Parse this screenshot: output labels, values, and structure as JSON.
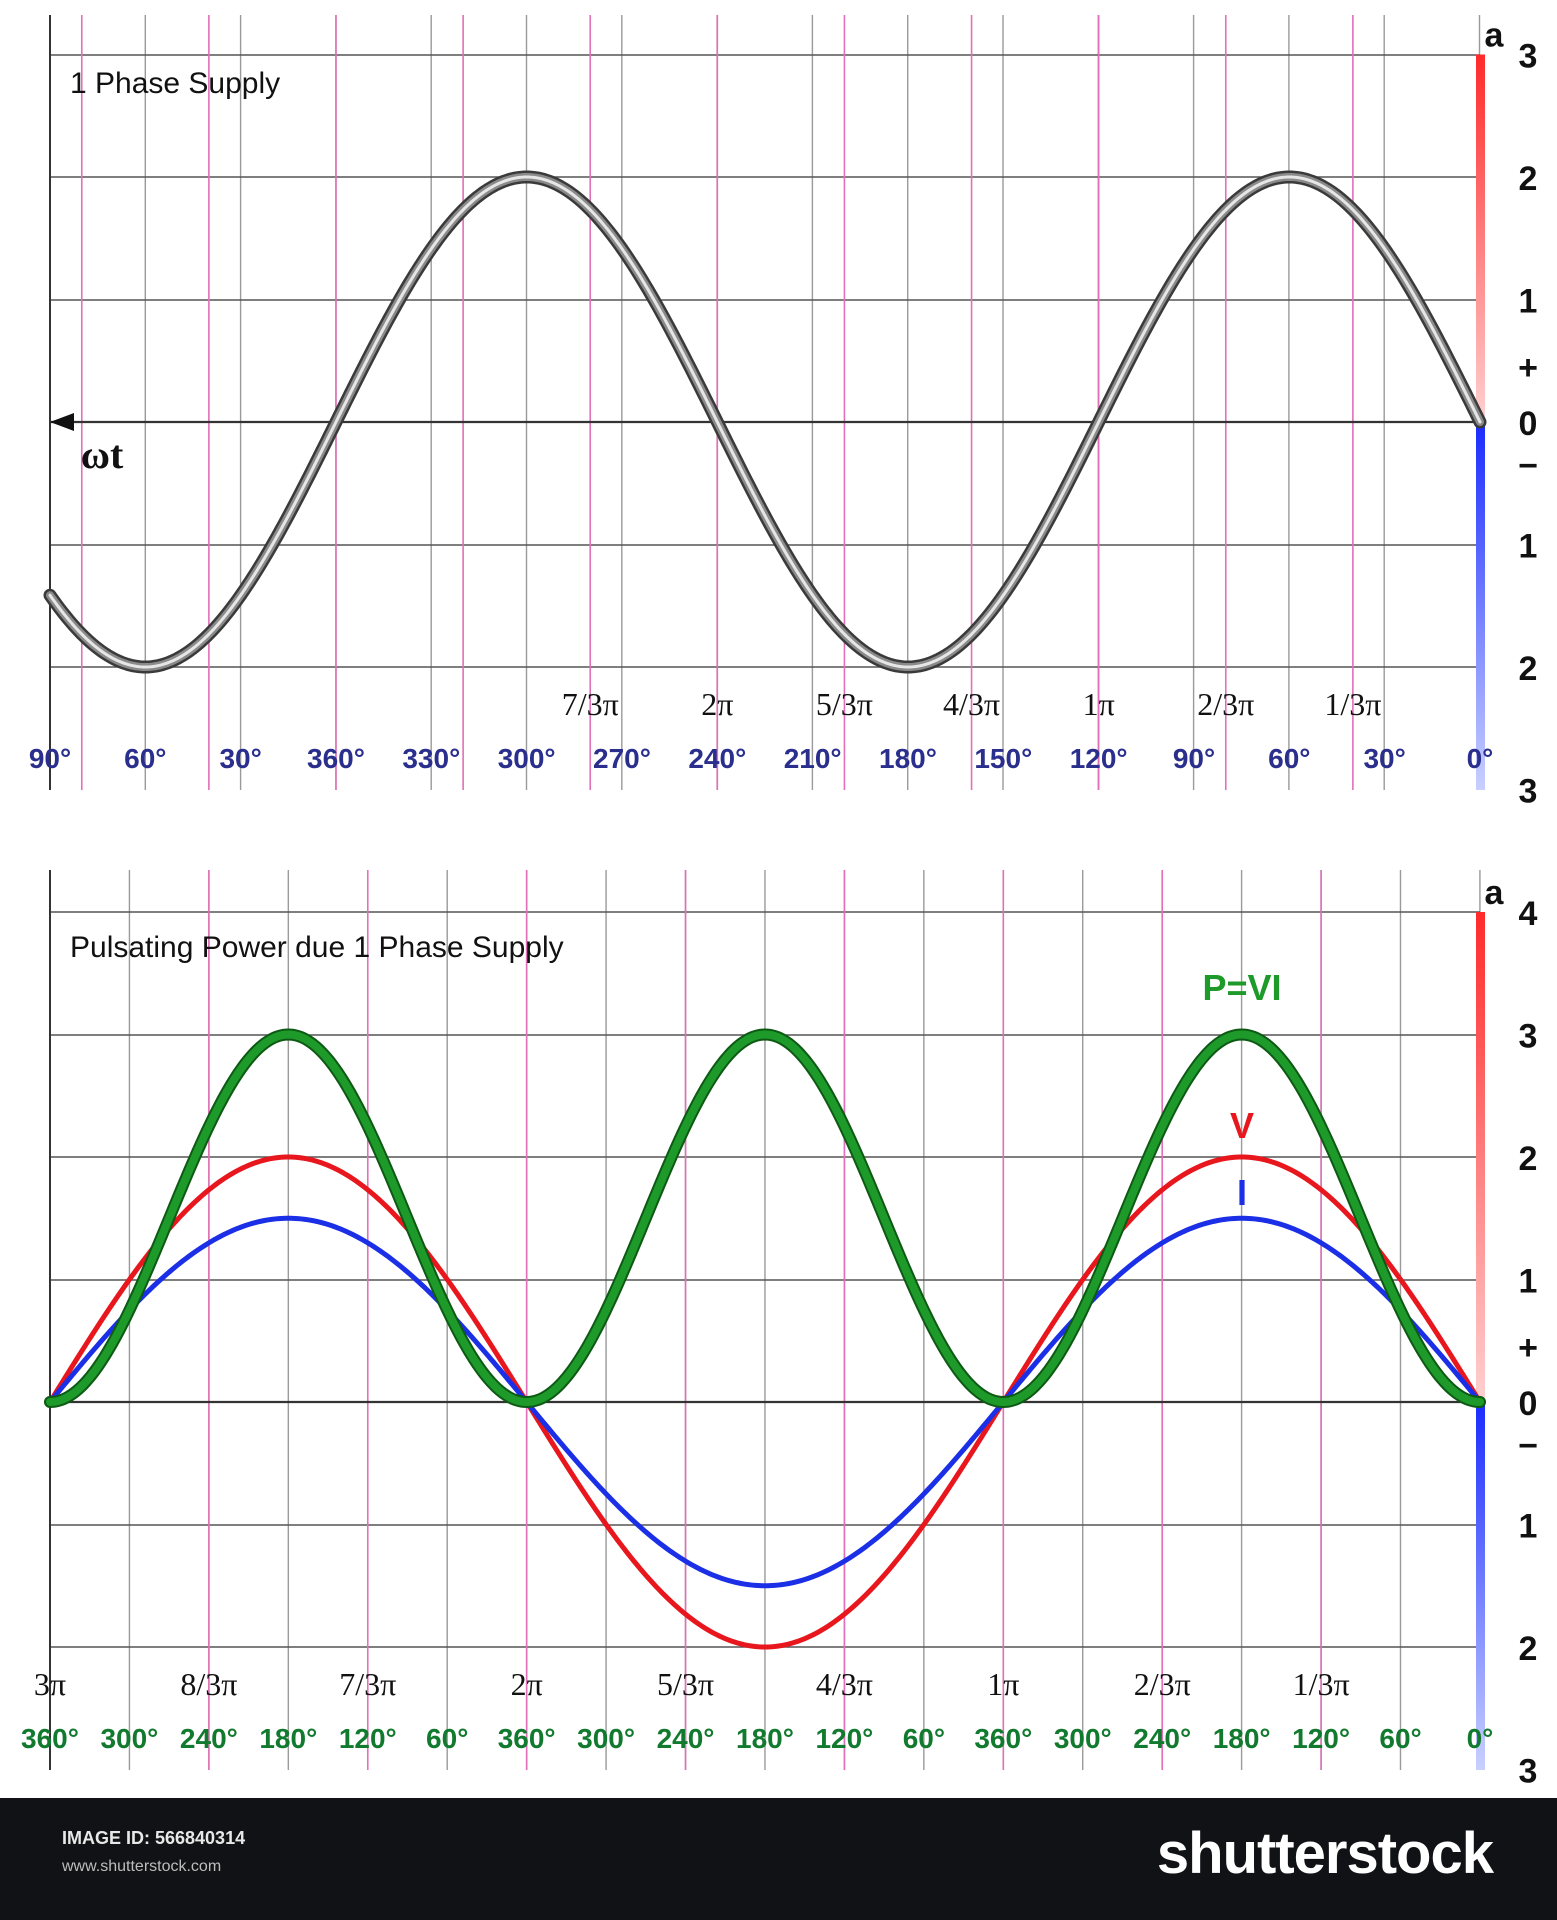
{
  "chart_data": [
    {
      "type": "line",
      "title": "1 Phase Supply",
      "axis_label": "ωt",
      "x_range": [
        0,
        3.75
      ],
      "x_ticks_pi": [
        "1/3π",
        "2/3π",
        "1π",
        "4/3π",
        "5/3π",
        "2π",
        "7/3π"
      ],
      "x_ticks_deg": [
        "0°",
        "30°",
        "60°",
        "90°",
        "120°",
        "150°",
        "180°",
        "210°",
        "240°",
        "270°",
        "300°",
        "330°",
        "360°",
        "30°",
        "60°",
        "90°"
      ],
      "y_ticks_pos": [
        "0",
        "1",
        "2",
        "3"
      ],
      "y_ticks_neg": [
        "1",
        "2",
        "3"
      ],
      "y_unit": "a",
      "y_sign_pos": "+",
      "y_sign_neg": "−",
      "ylim": [
        -3,
        3
      ],
      "grid": true,
      "series": [
        {
          "amplitude": 2,
          "color": "#8a8a8a",
          "formula": "2·sin(ωt)"
        }
      ]
    },
    {
      "type": "line",
      "title": "Pulsating Power due 1 Phase Supply",
      "x_range": [
        0,
        3
      ],
      "x_ticks_pi": [
        "1/3π",
        "2/3π",
        "1π",
        "4/3π",
        "5/3π",
        "2π",
        "7/3π",
        "8/3π",
        "3π"
      ],
      "x_ticks_deg": [
        "0°",
        "60°",
        "120°",
        "180°",
        "240°",
        "300°",
        "360°",
        "60°",
        "120°",
        "180°",
        "240°",
        "300°",
        "360°",
        "60°",
        "120°",
        "180°",
        "240°",
        "300°",
        "360°"
      ],
      "y_ticks_pos": [
        "0",
        "1",
        "2",
        "3",
        "4"
      ],
      "y_ticks_neg": [
        "1",
        "2",
        "3"
      ],
      "y_unit": "a",
      "y_sign_pos": "+",
      "y_sign_neg": "−",
      "ylim": [
        -3,
        4
      ],
      "grid": true,
      "series": [
        {
          "name": "V",
          "amplitude": 2,
          "color": "#e8161d",
          "formula": "2·sin(ωt)"
        },
        {
          "name": "I",
          "amplitude": 1.5,
          "color": "#1b2fe6",
          "formula": "1.5·sin(ωt)"
        },
        {
          "name": "P=VI",
          "amplitude": 3,
          "color": "#1e9a2a",
          "formula": "3·sin²(ωt)"
        }
      ]
    }
  ],
  "footer": {
    "image_id": "IMAGE ID: 566840314",
    "url": "www.shutterstock.com",
    "brand": "shutterstock"
  },
  "colors": {
    "degree_top": "#2a2e8c",
    "degree_bottom": "#127a2e"
  }
}
